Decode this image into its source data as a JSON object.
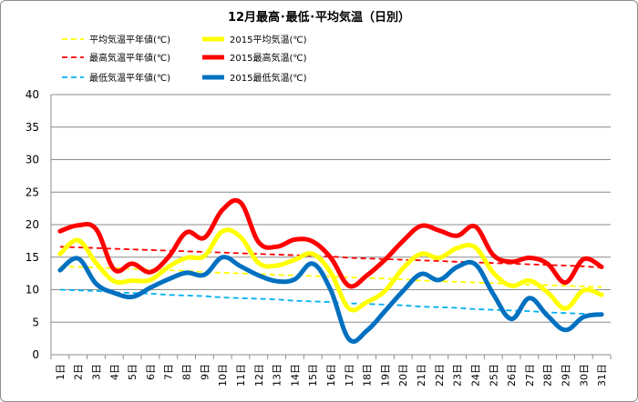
{
  "chart_data": {
    "type": "line",
    "title": "12月最高･最低･平均気温（日別）",
    "xlabel": "",
    "ylabel": "",
    "ylim": [
      0,
      40
    ],
    "yticks": [
      "0",
      "5",
      "10",
      "15",
      "20",
      "25",
      "30",
      "35",
      "40"
    ],
    "grid": true,
    "legend_position": "top",
    "categories": [
      "1日",
      "2日",
      "3日",
      "4日",
      "5日",
      "6日",
      "7日",
      "8日",
      "9日",
      "10日",
      "11日",
      "12日",
      "13日",
      "14日",
      "15日",
      "16日",
      "17日",
      "18日",
      "19日",
      "20日",
      "21日",
      "22日",
      "23日",
      "24日",
      "25日",
      "26日",
      "27日",
      "28日",
      "29日",
      "30日",
      "31日"
    ],
    "series": [
      {
        "name": "平均気温平年値(℃)",
        "color": "#ffff00",
        "style": "dashed",
        "values": [
          13.6,
          13.5,
          13.4,
          13.3,
          13.2,
          13.1,
          13.0,
          12.9,
          12.7,
          12.6,
          12.5,
          12.4,
          12.3,
          12.2,
          12.1,
          12.0,
          11.9,
          11.8,
          11.7,
          11.6,
          11.4,
          11.3,
          11.2,
          11.1,
          11.0,
          10.9,
          10.8,
          10.7,
          10.6,
          10.5,
          10.4
        ]
      },
      {
        "name": "2015平均気温(℃)",
        "color": "#ffff00",
        "style": "solid",
        "values": [
          15.5,
          17.6,
          14.1,
          11.3,
          11.4,
          11.5,
          13.5,
          14.9,
          15.2,
          19.0,
          18.1,
          14.1,
          13.7,
          14.6,
          15.5,
          12.6,
          7.1,
          8.1,
          9.8,
          13.3,
          15.5,
          14.9,
          16.4,
          16.5,
          12.6,
          10.6,
          11.4,
          9.6,
          7.1,
          9.9,
          9.2
        ]
      },
      {
        "name": "最高気温平年値(℃)",
        "color": "#ff0000",
        "style": "dashed",
        "values": [
          16.6,
          16.5,
          16.4,
          16.3,
          16.2,
          16.1,
          16.0,
          15.9,
          15.8,
          15.7,
          15.6,
          15.5,
          15.4,
          15.3,
          15.2,
          15.1,
          14.9,
          14.8,
          14.7,
          14.6,
          14.5,
          14.4,
          14.3,
          14.2,
          14.1,
          14.0,
          13.9,
          13.8,
          13.7,
          13.6,
          13.4
        ]
      },
      {
        "name": "2015最高気温(℃)",
        "color": "#ff0000",
        "style": "solid",
        "values": [
          19.0,
          19.9,
          19.3,
          13.1,
          14.0,
          12.7,
          15.0,
          18.8,
          18.0,
          22.3,
          23.4,
          17.3,
          16.6,
          17.7,
          17.4,
          14.9,
          10.6,
          12.2,
          14.6,
          17.5,
          19.8,
          19.1,
          18.3,
          19.7,
          15.3,
          14.3,
          14.9,
          14.0,
          11.1,
          14.7,
          13.5
        ]
      },
      {
        "name": "最低気温平年値(℃)",
        "color": "#00b0f0",
        "style": "dashed",
        "values": [
          10.0,
          9.9,
          9.8,
          9.6,
          9.5,
          9.4,
          9.2,
          9.1,
          9.0,
          8.8,
          8.7,
          8.6,
          8.5,
          8.3,
          8.2,
          8.1,
          7.9,
          7.8,
          7.7,
          7.6,
          7.4,
          7.3,
          7.2,
          7.0,
          6.9,
          6.8,
          6.7,
          6.5,
          6.4,
          6.3,
          6.1
        ]
      },
      {
        "name": "2015最低気温(℃)",
        "color": "#0070c0",
        "style": "solid",
        "values": [
          13.0,
          14.8,
          10.9,
          9.5,
          8.9,
          10.3,
          11.6,
          12.6,
          12.3,
          15.0,
          13.6,
          12.2,
          11.3,
          11.6,
          14.0,
          9.9,
          2.4,
          3.7,
          6.7,
          9.8,
          12.4,
          11.5,
          13.5,
          13.9,
          9.3,
          5.5,
          8.7,
          6.0,
          3.8,
          5.8,
          6.2
        ]
      }
    ]
  }
}
